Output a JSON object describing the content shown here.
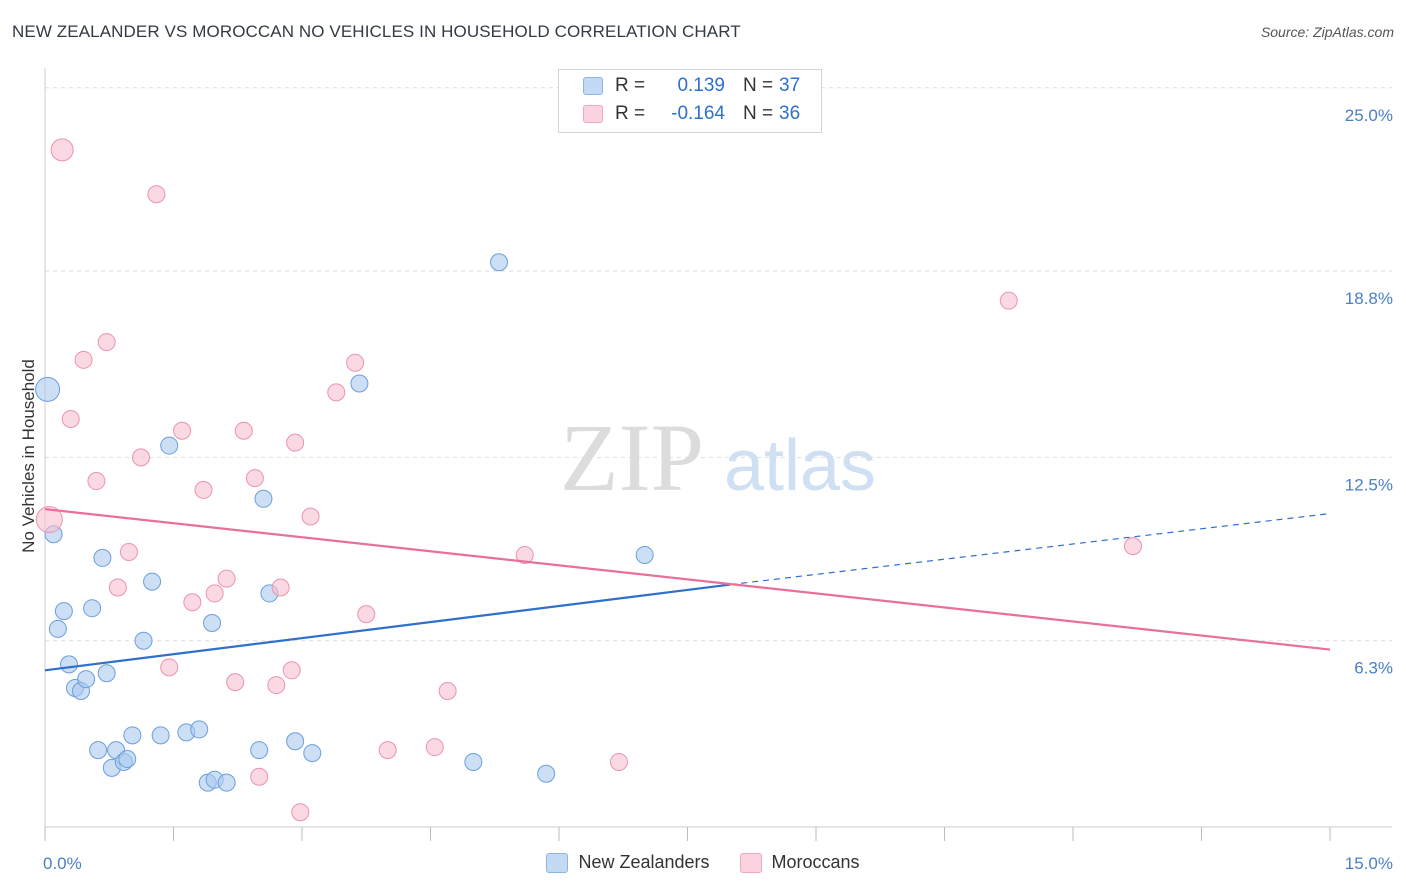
{
  "header": {
    "title": "NEW ZEALANDER VS MOROCCAN NO VEHICLES IN HOUSEHOLD CORRELATION CHART",
    "source": "Source: ZipAtlas.com"
  },
  "watermark": {
    "zip": "ZIP",
    "atlas": "atlas"
  },
  "legend": {
    "rows": [
      {
        "r_label": "R =",
        "r_value": "0.139",
        "n_label": "N =",
        "n_value": "37",
        "color": "#aac9ee"
      },
      {
        "r_label": "R =",
        "r_value": "-0.164",
        "n_label": "N =",
        "n_value": "36",
        "color": "#f6bfd0"
      }
    ]
  },
  "bottom_legend": {
    "items": [
      {
        "label": "New Zealanders",
        "color": "#aac9ee"
      },
      {
        "label": "Moroccans",
        "color": "#f6bfd0"
      }
    ]
  },
  "chart_data": {
    "type": "scatter",
    "title": "NEW ZEALANDER VS MOROCCAN NO VEHICLES IN HOUSEHOLD CORRELATION CHART",
    "xlabel": "",
    "ylabel": "No Vehicles in Household",
    "xlim": [
      0,
      15
    ],
    "ylim": [
      0,
      25.5
    ],
    "x_tick_labels": [
      "0.0%",
      "15.0%"
    ],
    "y_ticks": [
      6.3,
      12.5,
      18.8,
      25.0
    ],
    "y_tick_labels": [
      "6.3%",
      "12.5%",
      "18.8%",
      "25.0%"
    ],
    "grid": true,
    "series": [
      {
        "name": "New Zealanders",
        "color": "#aac9ee",
        "stroke": "#6b9fdc",
        "trend": {
          "x": [
            0,
            8.0
          ],
          "y": [
            5.3,
            8.2
          ],
          "dashed_to": [
            15,
            10.6
          ],
          "color": "#2f6fce"
        },
        "points": [
          {
            "x": 0.03,
            "y": 14.8,
            "s": 12
          },
          {
            "x": 0.1,
            "y": 9.9
          },
          {
            "x": 0.15,
            "y": 6.7
          },
          {
            "x": 0.22,
            "y": 7.3
          },
          {
            "x": 0.28,
            "y": 5.5
          },
          {
            "x": 0.35,
            "y": 4.7
          },
          {
            "x": 0.42,
            "y": 4.6
          },
          {
            "x": 0.48,
            "y": 5.0
          },
          {
            "x": 0.55,
            "y": 7.4
          },
          {
            "x": 0.62,
            "y": 2.6
          },
          {
            "x": 0.67,
            "y": 9.1
          },
          {
            "x": 0.72,
            "y": 5.2
          },
          {
            "x": 0.78,
            "y": 2.0
          },
          {
            "x": 0.83,
            "y": 2.6
          },
          {
            "x": 0.92,
            "y": 2.2
          },
          {
            "x": 0.96,
            "y": 2.3
          },
          {
            "x": 1.02,
            "y": 3.1
          },
          {
            "x": 1.15,
            "y": 6.3
          },
          {
            "x": 1.25,
            "y": 8.3
          },
          {
            "x": 1.35,
            "y": 3.1
          },
          {
            "x": 1.45,
            "y": 12.9
          },
          {
            "x": 1.65,
            "y": 3.2
          },
          {
            "x": 1.8,
            "y": 3.3
          },
          {
            "x": 1.9,
            "y": 1.5
          },
          {
            "x": 1.95,
            "y": 6.9
          },
          {
            "x": 1.98,
            "y": 1.6
          },
          {
            "x": 2.12,
            "y": 1.5
          },
          {
            "x": 2.5,
            "y": 2.6
          },
          {
            "x": 2.55,
            "y": 11.1
          },
          {
            "x": 2.62,
            "y": 7.9
          },
          {
            "x": 2.92,
            "y": 2.9
          },
          {
            "x": 3.12,
            "y": 2.5
          },
          {
            "x": 3.67,
            "y": 15.0
          },
          {
            "x": 5.0,
            "y": 2.2
          },
          {
            "x": 5.3,
            "y": 19.1
          },
          {
            "x": 5.85,
            "y": 1.8
          },
          {
            "x": 7.0,
            "y": 9.2
          }
        ]
      },
      {
        "name": "Moroccans",
        "color": "#f6bfd0",
        "stroke": "#ec93ae",
        "trend": {
          "x": [
            0,
            15
          ],
          "y": [
            10.75,
            6.0
          ],
          "color": "#e8709a"
        },
        "points": [
          {
            "x": 0.05,
            "y": 10.4,
            "s": 13
          },
          {
            "x": 0.2,
            "y": 22.9,
            "s": 11
          },
          {
            "x": 0.3,
            "y": 13.8
          },
          {
            "x": 0.45,
            "y": 15.8
          },
          {
            "x": 0.6,
            "y": 11.7
          },
          {
            "x": 0.72,
            "y": 16.4
          },
          {
            "x": 0.85,
            "y": 8.1
          },
          {
            "x": 0.98,
            "y": 9.3
          },
          {
            "x": 1.12,
            "y": 12.5
          },
          {
            "x": 1.3,
            "y": 21.4
          },
          {
            "x": 1.45,
            "y": 5.4
          },
          {
            "x": 1.6,
            "y": 13.4
          },
          {
            "x": 1.72,
            "y": 7.6
          },
          {
            "x": 1.85,
            "y": 11.4
          },
          {
            "x": 1.98,
            "y": 7.9
          },
          {
            "x": 2.12,
            "y": 8.4
          },
          {
            "x": 2.22,
            "y": 4.9
          },
          {
            "x": 2.32,
            "y": 13.4
          },
          {
            "x": 2.45,
            "y": 11.8
          },
          {
            "x": 2.5,
            "y": 1.7
          },
          {
            "x": 2.7,
            "y": 4.8
          },
          {
            "x": 2.75,
            "y": 8.1
          },
          {
            "x": 2.88,
            "y": 5.3
          },
          {
            "x": 2.92,
            "y": 13.0
          },
          {
            "x": 2.98,
            "y": 0.5
          },
          {
            "x": 3.1,
            "y": 10.5
          },
          {
            "x": 3.4,
            "y": 14.7
          },
          {
            "x": 3.62,
            "y": 15.7
          },
          {
            "x": 3.75,
            "y": 7.2
          },
          {
            "x": 4.0,
            "y": 2.6
          },
          {
            "x": 4.55,
            "y": 2.7
          },
          {
            "x": 4.7,
            "y": 4.6
          },
          {
            "x": 5.6,
            "y": 9.2
          },
          {
            "x": 6.7,
            "y": 2.2
          },
          {
            "x": 11.25,
            "y": 17.8
          },
          {
            "x": 12.7,
            "y": 9.5
          }
        ]
      }
    ]
  }
}
